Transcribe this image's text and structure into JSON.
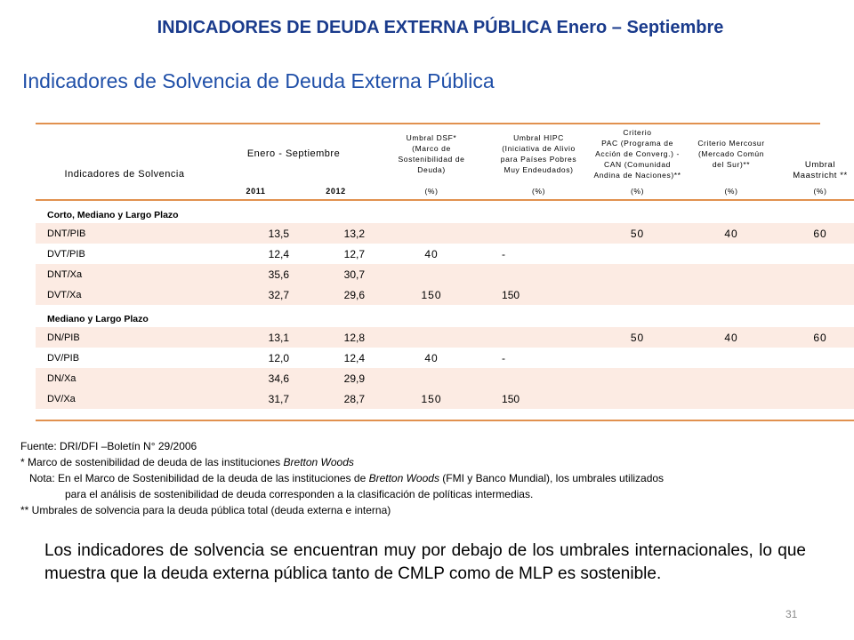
{
  "header_title": "INDICADORES DE DEUDA EXTERNA PÚBLICA Enero – Septiembre",
  "subtitle": "Indicadores de Solvencia de Deuda Externa Pública",
  "table": {
    "col_indicators": "Indicadores de Solvencia",
    "col_period": "Enero - Septiembre",
    "year_2011": "2011",
    "year_2012": "2012",
    "col_dsf": [
      "Umbral DSF*",
      "(Marco de",
      "Sostenibilidad de",
      "Deuda)"
    ],
    "col_hipc": [
      "Umbral HIPC",
      "(Iniciativa de Alivio",
      "para Países Pobres",
      "Muy Endeudados)"
    ],
    "col_pac": [
      "Criterio",
      "PAC (Programa de",
      "Acción de Converg.) -",
      "CAN (Comunidad",
      "Andina de Naciones)**"
    ],
    "col_mercosur": [
      "Criterio Mercosur",
      "(Mercado Común",
      "del Sur)**"
    ],
    "col_maastricht": [
      "Umbral",
      "Maastricht **"
    ],
    "unit_dsf": "(%)",
    "unit_hipc": "(%)",
    "unit_pac": "(%)",
    "unit_mercosur": "(%)",
    "unit_maastricht": "(%)",
    "section1": {
      "title": "Corto, Mediano y Largo Plazo",
      "rows": [
        {
          "label": "DNT/PIB",
          "v2011": "13,5",
          "v2012": "13,2",
          "dsf": "",
          "hipc": "",
          "pac": "50",
          "mercosur": "40",
          "maastricht": "60"
        },
        {
          "label": "DVT/PIB",
          "v2011": "12,4",
          "v2012": "12,7",
          "dsf": "40",
          "hipc": "-",
          "pac": "",
          "mercosur": "",
          "maastricht": ""
        },
        {
          "label": "DNT/Xa",
          "v2011": "35,6",
          "v2012": "30,7",
          "dsf": "",
          "hipc": "",
          "pac": "",
          "mercosur": "",
          "maastricht": ""
        },
        {
          "label": "DVT/Xa",
          "v2011": "32,7",
          "v2012": "29,6",
          "dsf": "150",
          "hipc": "150",
          "pac": "",
          "mercosur": "",
          "maastricht": ""
        }
      ]
    },
    "section2": {
      "title": "Mediano y Largo Plazo",
      "rows": [
        {
          "label": "DN/PIB",
          "v2011": "13,1",
          "v2012": "12,8",
          "dsf": "",
          "hipc": "",
          "pac": "50",
          "mercosur": "40",
          "maastricht": "60"
        },
        {
          "label": "DV/PIB",
          "v2011": "12,0",
          "v2012": "12,4",
          "dsf": "40",
          "hipc": "-",
          "pac": "",
          "mercosur": "",
          "maastricht": ""
        },
        {
          "label": "DN/Xa",
          "v2011": "34,6",
          "v2012": "29,9",
          "dsf": "",
          "hipc": "",
          "pac": "",
          "mercosur": "",
          "maastricht": ""
        },
        {
          "label": "DV/Xa",
          "v2011": "31,7",
          "v2012": "28,7",
          "dsf": "150",
          "hipc": "150",
          "pac": "",
          "mercosur": "",
          "maastricht": ""
        }
      ]
    }
  },
  "notes": {
    "source": "Fuente: DRI/DFI –Boletín N° 29/2006",
    "note1_prefix": "* Marco de sostenibilidad de deuda de las instituciones ",
    "note1_italic": "Bretton Woods",
    "nota_prefix": "Nota: En el Marco de Sostenibilidad de la deuda de las instituciones de ",
    "nota_italic": "Bretton Woods",
    "nota_suffix": " (FMI y Banco Mundial), los umbrales utilizados",
    "nota_cont": "para el análisis de sostenibilidad de deuda corresponden a la clasificación de políticas intermedias.",
    "note2": "** Umbrales de solvencia para la deuda pública total (deuda externa e interna)"
  },
  "conclusion": "Los indicadores de solvencia se encuentran muy por debajo de los umbrales internacionales, lo que muestra que la deuda externa pública tanto de CMLP como de MLP es sostenible.",
  "page_number": "31",
  "colors": {
    "title": "#1a3b8c",
    "subtitle": "#1f4fa8",
    "rule": "#e1914f",
    "row_shade": "#fcebe3"
  }
}
